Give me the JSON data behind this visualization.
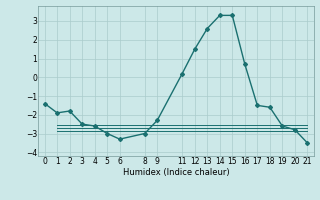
{
  "title": "",
  "xlabel": "Humidex (Indice chaleur)",
  "ylabel": "",
  "background_color": "#cce8e8",
  "grid_color": "#aacccc",
  "line_color": "#1a7070",
  "xlim": [
    -0.5,
    21.5
  ],
  "ylim": [
    -4.2,
    3.8
  ],
  "xticks": [
    0,
    1,
    2,
    3,
    4,
    5,
    6,
    8,
    9,
    11,
    12,
    13,
    14,
    15,
    16,
    17,
    18,
    19,
    20,
    21
  ],
  "yticks": [
    -4,
    -3,
    -2,
    -1,
    0,
    1,
    2,
    3
  ],
  "series": [
    {
      "x": [
        0,
        1,
        2,
        3,
        4,
        5,
        6,
        8,
        9,
        11,
        12,
        13,
        14,
        15,
        16,
        17,
        18,
        19,
        20,
        21
      ],
      "y": [
        -1.4,
        -1.9,
        -1.8,
        -2.5,
        -2.6,
        -3.0,
        -3.3,
        -3.0,
        -2.3,
        0.2,
        1.5,
        2.6,
        3.3,
        3.3,
        0.7,
        -1.5,
        -1.6,
        -2.6,
        -2.8,
        -3.5
      ],
      "marker": "D",
      "markersize": 2.0,
      "linewidth": 1.0
    },
    {
      "x": [
        1,
        21
      ],
      "y": [
        -2.55,
        -2.55
      ],
      "marker": null,
      "markersize": 0,
      "linewidth": 0.7
    },
    {
      "x": [
        1,
        21
      ],
      "y": [
        -2.72,
        -2.72
      ],
      "marker": null,
      "markersize": 0,
      "linewidth": 0.7
    },
    {
      "x": [
        1,
        21
      ],
      "y": [
        -2.88,
        -2.88
      ],
      "marker": null,
      "markersize": 0,
      "linewidth": 0.7
    }
  ]
}
